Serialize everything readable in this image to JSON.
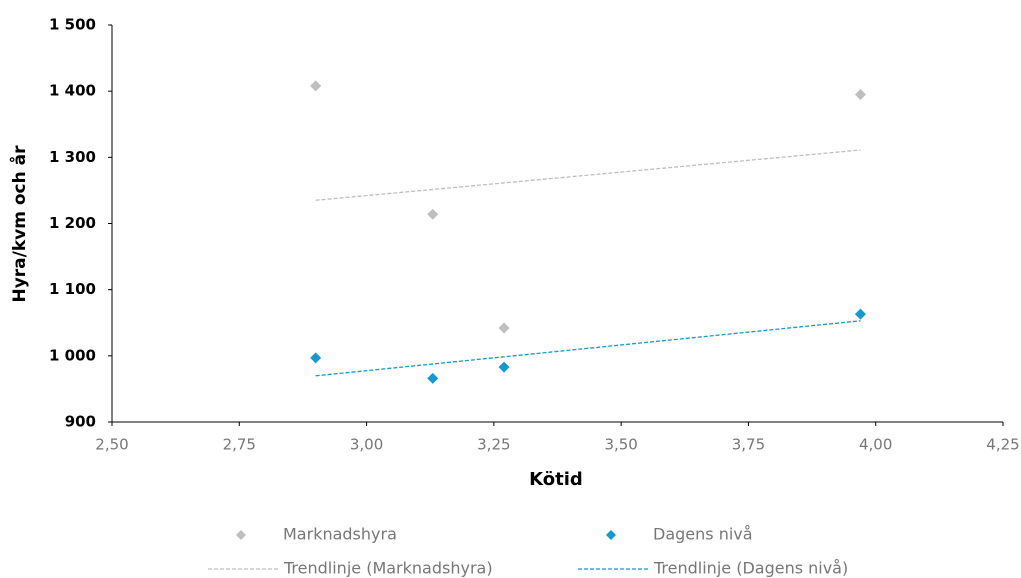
{
  "chart_data": {
    "type": "scatter",
    "x_label": "Kötid",
    "y_label": "Hyra/kvm och år",
    "x": [
      2.9,
      3.13,
      3.27,
      3.97
    ],
    "series": [
      {
        "name": "Marknadshyra",
        "color": "#bfbfbf",
        "values": [
          1408,
          1214,
          1042,
          1395
        ],
        "trendline": "Trendlinje (Marknadshyra)"
      },
      {
        "name": "Dagens nivå",
        "color": "#1399d4",
        "values": [
          997,
          966,
          983,
          1063
        ],
        "trendline": "Trendlinje (Dagens nivå)"
      }
    ],
    "xlim": [
      2.5,
      4.25
    ],
    "xticks": [
      {
        "value": 2.5,
        "label": "2,50"
      },
      {
        "value": 2.75,
        "label": "2,75"
      },
      {
        "value": 3.0,
        "label": "3,00"
      },
      {
        "value": 3.25,
        "label": "3,25"
      },
      {
        "value": 3.5,
        "label": "3,50"
      },
      {
        "value": 3.75,
        "label": "3,75"
      },
      {
        "value": 4.0,
        "label": "4,00"
      },
      {
        "value": 4.25,
        "label": "4,25"
      }
    ],
    "ylim": [
      900,
      1500
    ],
    "yticks": [
      900,
      {
        "value": 1000,
        "label": "1 000"
      },
      {
        "value": 1100,
        "label": "1 100"
      },
      {
        "value": 1200,
        "label": "1 200"
      },
      {
        "value": 1300,
        "label": "1 300"
      },
      {
        "value": 1400,
        "label": "1 400"
      },
      {
        "value": 1500,
        "label": "1 500"
      }
    ],
    "grid": false,
    "legend": "bottom"
  }
}
